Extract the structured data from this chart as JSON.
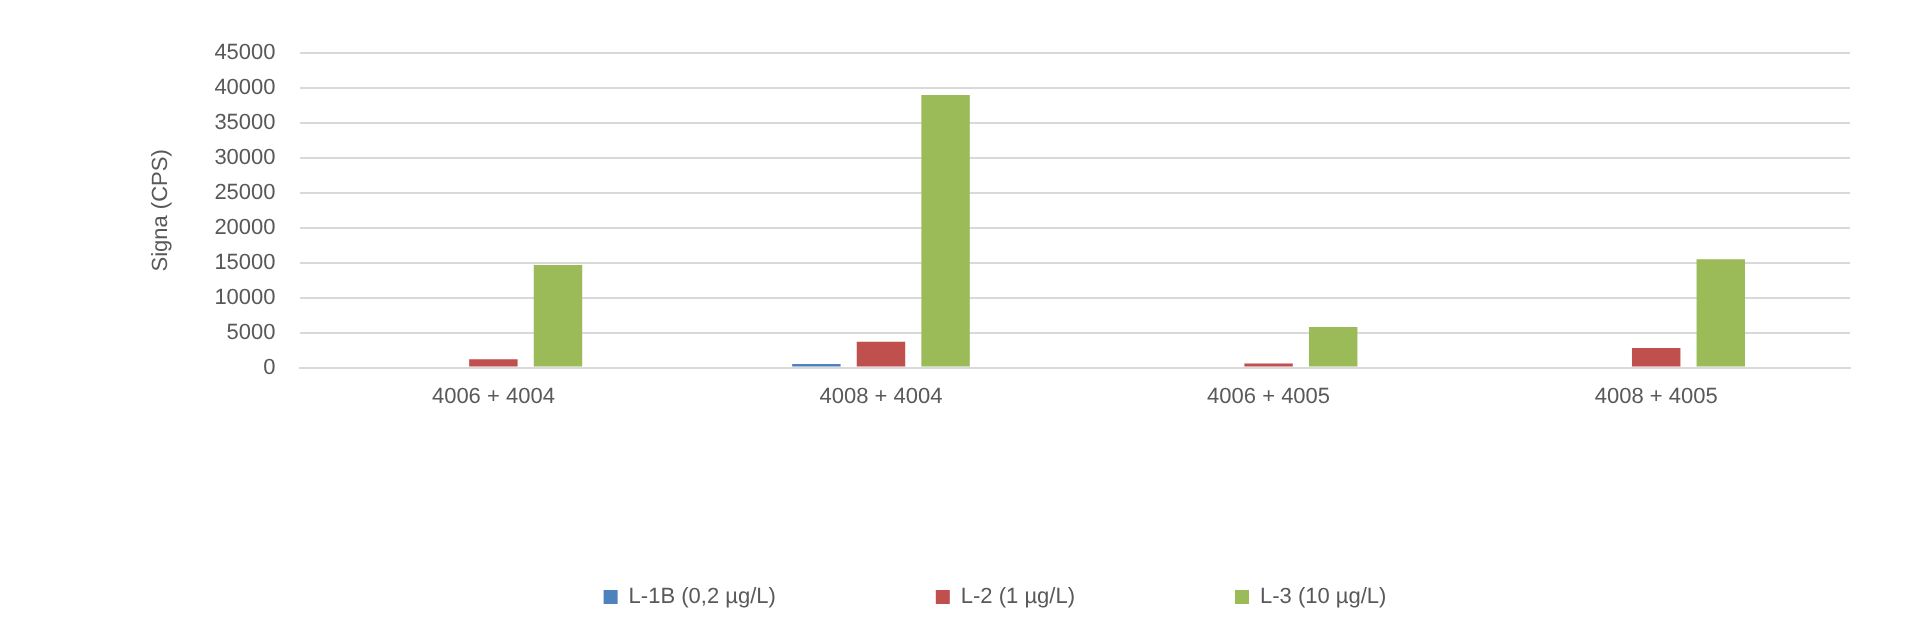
{
  "chart_data": {
    "type": "bar",
    "ylabel": "Signa (CPS)",
    "categories": [
      "4006 + 4004",
      "4008 + 4004",
      "4006 + 4005",
      "4008 + 4005"
    ],
    "series": [
      {
        "name": "L-1B (0,2 µg/L)",
        "color": "#4f81bd",
        "values": [
          0,
          500,
          0,
          0
        ]
      },
      {
        "name": "L-2 (1 µg/L)",
        "color": "#c0504d",
        "values": [
          1200,
          3700,
          600,
          2800
        ]
      },
      {
        "name": "L-3 (10 µg/L)",
        "color": "#9bbb59",
        "values": [
          14700,
          39000,
          5800,
          15500
        ]
      }
    ],
    "ylim": [
      0,
      45000
    ],
    "yticks": [
      0,
      5000,
      10000,
      15000,
      20000,
      25000,
      30000,
      35000,
      40000,
      45000
    ],
    "grid": "y",
    "legend": "bottom"
  }
}
